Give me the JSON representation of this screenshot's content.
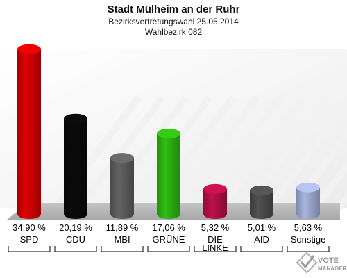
{
  "chart_data": {
    "type": "bar",
    "title": "Stadt Mülheim an der Ruhr",
    "subtitle": "Bezirksvertretungswahl 25.05.2014",
    "subtitle2": "Wahlbezirk 082",
    "categories": [
      "SPD",
      "CDU",
      "MBI",
      "GRÜNE",
      "DIE LINKE",
      "AfD",
      "Sonstige"
    ],
    "category_lines": [
      [
        "SPD"
      ],
      [
        "CDU"
      ],
      [
        "MBI"
      ],
      [
        "GRÜNE"
      ],
      [
        "DIE",
        "LINKE"
      ],
      [
        "AfD"
      ],
      [
        "Sonstige"
      ]
    ],
    "values": [
      34.9,
      20.19,
      11.89,
      17.06,
      5.32,
      5.01,
      5.63
    ],
    "value_labels": [
      "34,90 %",
      "20,19 %",
      "11,89 %",
      "17,06 %",
      "5,32 %",
      "5,01 %",
      "5,63 %"
    ],
    "colors": [
      "#e00000",
      "#0a0a0a",
      "#636363",
      "#2fbf12",
      "#c0104a",
      "#505050",
      "#a9b6e0"
    ],
    "ylim": [
      0,
      35
    ],
    "grid": false,
    "style": "3d-cylinder"
  },
  "watermark": {
    "line1": "VOTE",
    "line2": "MANAGER"
  }
}
